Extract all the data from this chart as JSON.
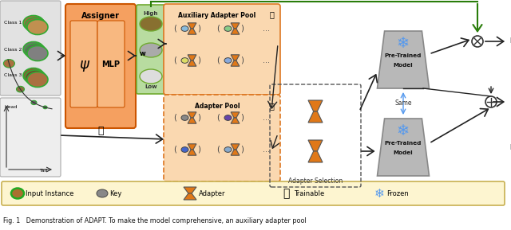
{
  "bg_color": "#ffffff",
  "legend_bg": "#fdf5d0",
  "legend_border": "#c8b050",
  "assigner_color": "#f5a060",
  "pool_aux_color": "#fad8b0",
  "pool_main_color": "#fad8b0",
  "adapter_color": "#e07818",
  "key_color": "#808080",
  "pretrained_color": "#b8b8b8",
  "pretrained_border": "#888888",
  "arrow_color": "#222222",
  "green_line_color": "#2a7d0a",
  "w_box_color": "#b8dca0",
  "class_bg": "#d8d8d8",
  "title_text": "Fig. 1   Demonstration of ADAPT. To make the model comprehensive, an auxiliary adapter pool",
  "legend_items": [
    "Input Instance",
    "Key",
    "Adapter",
    "Trainable",
    "Frozen"
  ],
  "aux_key_colors": [
    "#88bbdd",
    "#88cc88",
    "#dddd66",
    "#88aadd"
  ],
  "main_key_colors": [
    "#888888",
    "#6644aa",
    "#4466cc",
    "#88aacc"
  ]
}
